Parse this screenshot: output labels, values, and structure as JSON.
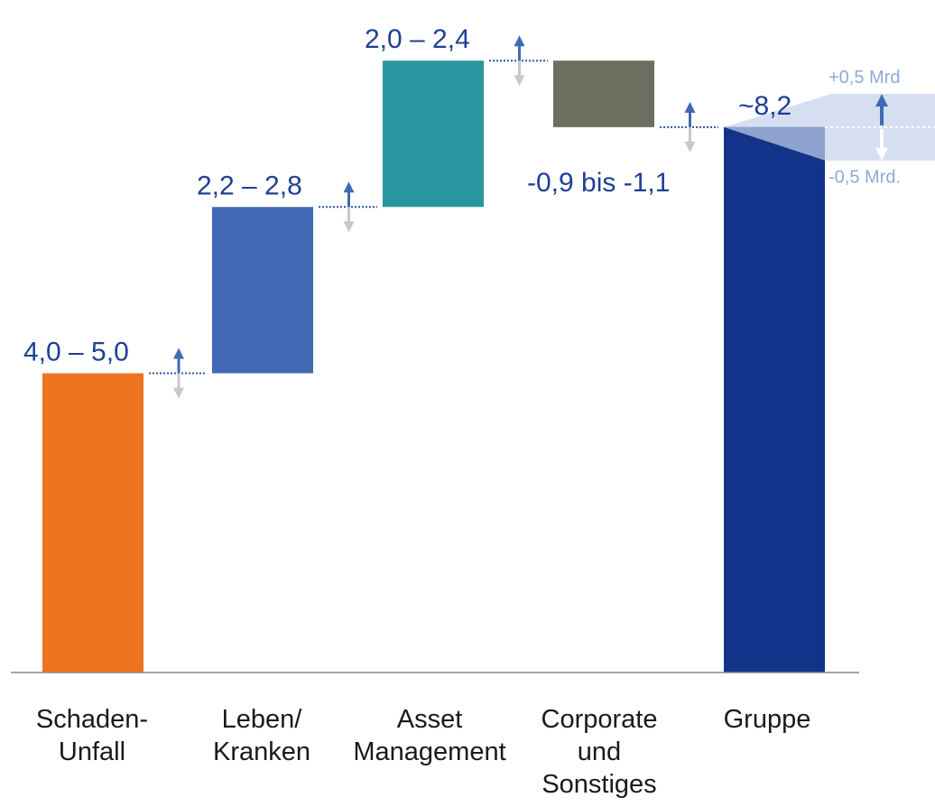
{
  "chart_data": {
    "type": "waterfall",
    "title": "",
    "categories": [
      {
        "lines": [
          "Schaden-",
          "Unfall"
        ]
      },
      {
        "lines": [
          "Leben/",
          "Kranken"
        ]
      },
      {
        "lines": [
          "Asset",
          "Management"
        ]
      },
      {
        "lines": [
          "Corporate",
          "und",
          "Sonstiges"
        ]
      },
      {
        "lines": [
          "Gruppe"
        ]
      }
    ],
    "bars": [
      {
        "name": "Schaden-Unfall",
        "start": 0,
        "end": 4.5,
        "label": "4,0 – 5,0",
        "color": "#ef741f"
      },
      {
        "name": "Leben/Kranken",
        "start": 4.5,
        "end": 7.0,
        "label": "2,2 – 2,8",
        "color": "#4169b3"
      },
      {
        "name": "Asset Management",
        "start": 7.0,
        "end": 9.2,
        "label": "2,0 – 2,4",
        "color": "#2a96a0"
      },
      {
        "name": "Corporate und Sonstiges",
        "start": 9.2,
        "end": 8.2,
        "label": "-0,9 bis -1,1",
        "color": "#6c6e5f"
      },
      {
        "name": "Gruppe",
        "start": 0,
        "end": 8.2,
        "label": "~8,2",
        "color": "#13328a"
      }
    ],
    "range": {
      "upper_label": "+0,5 Mrd",
      "lower_label": "-0,5 Mrd.",
      "delta": 0.5
    },
    "ylim": [
      0,
      9.8
    ],
    "grid": false,
    "legend": "none",
    "colors": {
      "label_text": "#1f3f94",
      "connector": "#2f55a8",
      "arrow_up": "#4169b3",
      "arrow_down": "#c8c8c8",
      "band": "#d0dbef",
      "band_label": "#8fa8d8",
      "axis": "#888888"
    }
  }
}
